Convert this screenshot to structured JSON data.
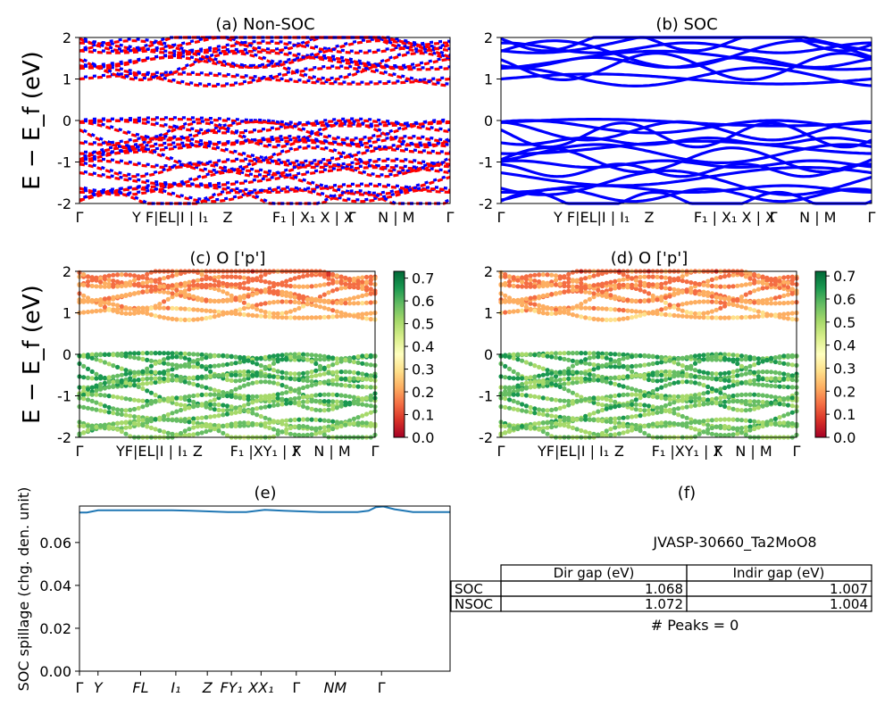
{
  "figure": {
    "ylabel_band": "E − E_f (eV)",
    "ylabel_spillage": "SOC spillage (chg. den. unit)"
  },
  "kpath_labels": [
    "Γ",
    "Y",
    "F",
    "L",
    "I",
    "I",
    "Z",
    "F",
    "X",
    "X",
    "Γ",
    "N",
    "M",
    "Γ"
  ],
  "kpath_text_ab": [
    "Γ",
    "Y F|EL|I | I₁",
    "Z",
    "F₁ | X₁ X | X",
    "Γ",
    "N | M",
    "Γ"
  ],
  "kpath_text_cd": [
    "Γ",
    "YF|EL|I | I₁",
    "Z",
    "F₁ |XY₁ | X",
    "Γ",
    "N | M",
    "Γ"
  ],
  "kpath_text_e": [
    "Γ",
    "Y",
    "FL",
    "I₁",
    "Z",
    "FY₁",
    "XX₁",
    "Γ",
    "NM",
    "Γ"
  ],
  "colorbar": {
    "ticks": [
      "0.0",
      "0.1",
      "0.2",
      "0.3",
      "0.4",
      "0.5",
      "0.6",
      "0.7"
    ],
    "colors": [
      "#a50026",
      "#d73027",
      "#f46d43",
      "#fdae61",
      "#fee08b",
      "#ffffbf",
      "#d9ef8b",
      "#a6d96a",
      "#66bd63",
      "#1a9850",
      "#006837"
    ]
  },
  "table": {
    "title": "JVASP-30660_Ta2MoO8",
    "headers": [
      "Dir gap (eV)",
      "Indir gap (eV)"
    ],
    "rows": [
      {
        "label": "SOC",
        "dir": "1.068",
        "indir": "1.007"
      },
      {
        "label": "NSOC",
        "dir": "1.072",
        "indir": "1.004"
      }
    ],
    "peaks": "# Peaks = 0"
  },
  "chart_data": [
    {
      "type": "line",
      "title": "(a) Non-SOC",
      "ylim": [
        -2,
        2
      ],
      "yticks": [
        -2,
        -1,
        0,
        1,
        2
      ],
      "series_colors": [
        "#ff0000",
        "#0000ff"
      ],
      "description_bands": "conduction bands 1.0–2.0 eV, valence bands -2.0–0.0 eV"
    },
    {
      "type": "line",
      "title": "(b) SOC",
      "ylim": [
        -2,
        2
      ],
      "yticks": [
        -2,
        -1,
        0,
        1,
        2
      ],
      "series_colors": [
        "#0000ff"
      ]
    },
    {
      "type": "scatter",
      "title": "(c)  O ['p']",
      "ylim": [
        -2,
        2
      ],
      "yticks": [
        -2,
        -1,
        0,
        1,
        2
      ],
      "colorbar_range": [
        0.0,
        0.73
      ]
    },
    {
      "type": "scatter",
      "title": "(d) O ['p']",
      "ylim": [
        -2,
        2
      ],
      "yticks": [
        -2,
        -1,
        0,
        1,
        2
      ],
      "colorbar_range": [
        0.0,
        0.72
      ]
    },
    {
      "type": "line",
      "title": "(e)",
      "ylim": [
        0.0,
        0.077
      ],
      "yticks": [
        "0.00",
        "0.02",
        "0.04",
        "0.06"
      ],
      "x": [
        0,
        0.02,
        0.05,
        0.1,
        0.15,
        0.2,
        0.25,
        0.3,
        0.35,
        0.4,
        0.45,
        0.5,
        0.55,
        0.6,
        0.65,
        0.7,
        0.75,
        0.78,
        0.8,
        0.82,
        0.85,
        0.9,
        0.95,
        1.0
      ],
      "values": [
        0.074,
        0.074,
        0.075,
        0.075,
        0.075,
        0.075,
        0.075,
        0.0748,
        0.0745,
        0.0742,
        0.0742,
        0.0752,
        0.0748,
        0.0745,
        0.0742,
        0.0742,
        0.0742,
        0.0748,
        0.0765,
        0.0768,
        0.0755,
        0.0742,
        0.0742,
        0.0742
      ],
      "color": "#1f77b4"
    },
    {
      "type": "table",
      "title": "(f)"
    }
  ]
}
